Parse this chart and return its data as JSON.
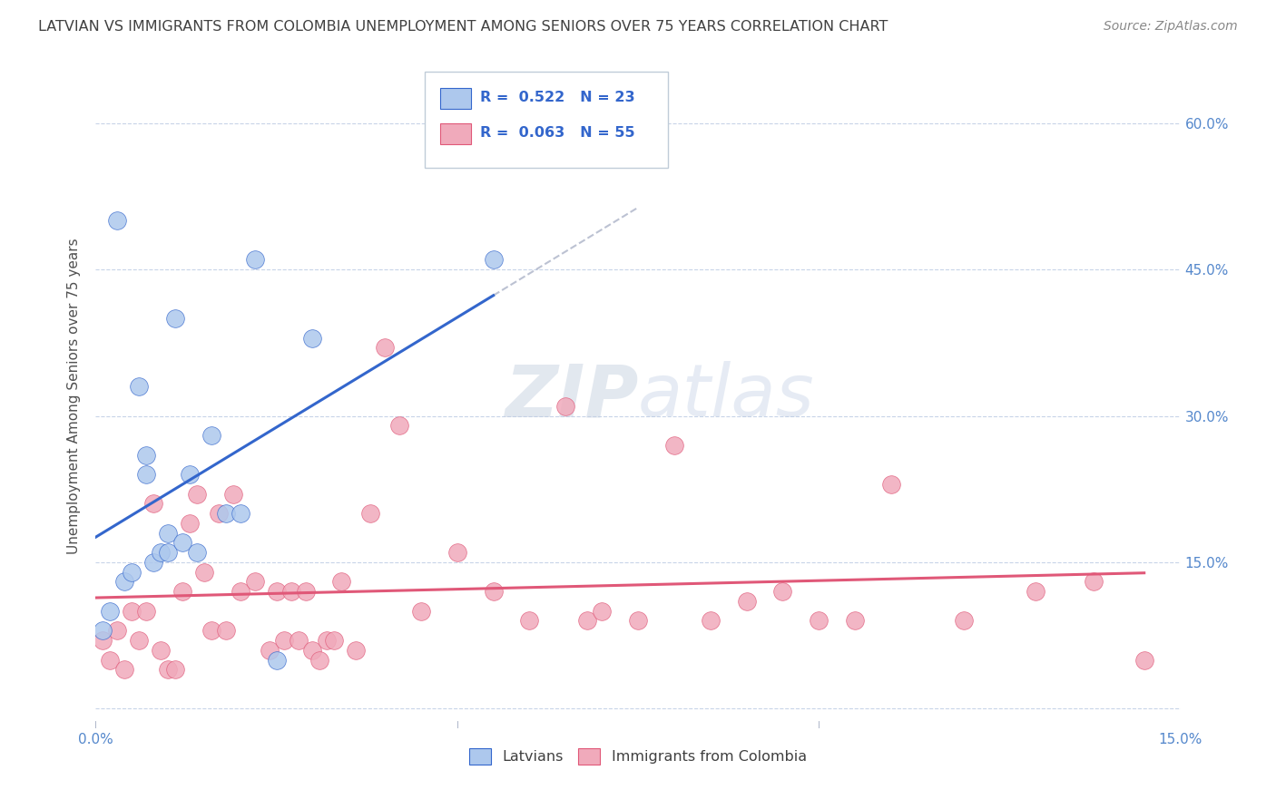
{
  "title": "LATVIAN VS IMMIGRANTS FROM COLOMBIA UNEMPLOYMENT AMONG SENIORS OVER 75 YEARS CORRELATION CHART",
  "source": "Source: ZipAtlas.com",
  "ylabel": "Unemployment Among Seniors over 75 years",
  "ylabel_right_values": [
    0.15,
    0.3,
    0.45,
    0.6
  ],
  "xmin": 0.0,
  "xmax": 0.15,
  "ymin": -0.02,
  "ymax": 0.66,
  "latvian_R": 0.522,
  "latvian_N": 23,
  "colombia_R": 0.063,
  "colombia_N": 55,
  "latvian_color": "#adc8ed",
  "colombia_color": "#f0aabb",
  "latvian_line_color": "#3366cc",
  "colombia_line_color": "#e05878",
  "background_color": "#ffffff",
  "grid_color": "#c8d4e8",
  "title_color": "#404040",
  "watermark": "ZIPatlas",
  "latvians_x": [
    0.001,
    0.002,
    0.003,
    0.004,
    0.005,
    0.006,
    0.007,
    0.007,
    0.008,
    0.009,
    0.01,
    0.01,
    0.011,
    0.012,
    0.013,
    0.014,
    0.016,
    0.018,
    0.02,
    0.022,
    0.025,
    0.03,
    0.055
  ],
  "latvians_y": [
    0.08,
    0.1,
    0.5,
    0.13,
    0.14,
    0.33,
    0.24,
    0.26,
    0.15,
    0.16,
    0.16,
    0.18,
    0.4,
    0.17,
    0.24,
    0.16,
    0.28,
    0.2,
    0.2,
    0.46,
    0.05,
    0.38,
    0.46
  ],
  "colombian_x": [
    0.001,
    0.002,
    0.003,
    0.004,
    0.005,
    0.006,
    0.007,
    0.008,
    0.009,
    0.01,
    0.011,
    0.012,
    0.013,
    0.014,
    0.015,
    0.016,
    0.017,
    0.018,
    0.019,
    0.02,
    0.022,
    0.024,
    0.025,
    0.026,
    0.027,
    0.028,
    0.029,
    0.03,
    0.031,
    0.032,
    0.033,
    0.034,
    0.036,
    0.038,
    0.04,
    0.042,
    0.045,
    0.05,
    0.055,
    0.06,
    0.065,
    0.068,
    0.07,
    0.075,
    0.08,
    0.085,
    0.09,
    0.095,
    0.1,
    0.105,
    0.11,
    0.12,
    0.13,
    0.138,
    0.145
  ],
  "colombian_y": [
    0.07,
    0.05,
    0.08,
    0.04,
    0.1,
    0.07,
    0.1,
    0.21,
    0.06,
    0.04,
    0.04,
    0.12,
    0.19,
    0.22,
    0.14,
    0.08,
    0.2,
    0.08,
    0.22,
    0.12,
    0.13,
    0.06,
    0.12,
    0.07,
    0.12,
    0.07,
    0.12,
    0.06,
    0.05,
    0.07,
    0.07,
    0.13,
    0.06,
    0.2,
    0.37,
    0.29,
    0.1,
    0.16,
    0.12,
    0.09,
    0.31,
    0.09,
    0.1,
    0.09,
    0.27,
    0.09,
    0.11,
    0.12,
    0.09,
    0.09,
    0.23,
    0.09,
    0.12,
    0.13,
    0.05
  ]
}
